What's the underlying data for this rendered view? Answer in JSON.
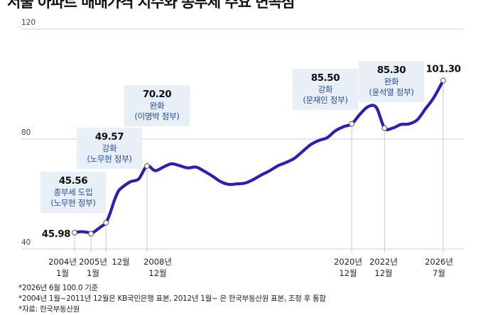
{
  "title": "서울 아파트 매매가격 지수와 종부세 주요 변곡점",
  "chart_data": {
    "type": "line",
    "ylim": [
      40,
      120
    ],
    "yticks": [
      40,
      80,
      120
    ],
    "xlim": [
      "2004-01",
      "2026-07"
    ],
    "series": [
      {
        "x": [
          "2004-01",
          "2004-06",
          "2004-12",
          "2005-01",
          "2005-04",
          "2005-08",
          "2005-12",
          "2006-03",
          "2006-06",
          "2006-09",
          "2006-12",
          "2007-06",
          "2007-12",
          "2008-06",
          "2008-12",
          "2009-06",
          "2009-12",
          "2010-06",
          "2010-12",
          "2011-06",
          "2011-12",
          "2012-06",
          "2012-12",
          "2013-06",
          "2013-12",
          "2014-06",
          "2014-12",
          "2015-06",
          "2015-12",
          "2016-06",
          "2016-12",
          "2017-06",
          "2017-12",
          "2018-06",
          "2018-12",
          "2019-06",
          "2019-12",
          "2020-06",
          "2020-12",
          "2021-06",
          "2021-12",
          "2022-06",
          "2022-12",
          "2023-06",
          "2023-12",
          "2024-06",
          "2024-12",
          "2025-06",
          "2025-12",
          "2026-07"
        ],
        "values": [
          45.98,
          46.3,
          45.9,
          45.56,
          46.5,
          48.0,
          49.57,
          53.0,
          57.5,
          61.0,
          62.5,
          64.5,
          65.5,
          70.2,
          68.5,
          69.8,
          71.0,
          70.3,
          69.5,
          69.8,
          68.3,
          66.5,
          64.5,
          63.5,
          63.7,
          64.0,
          65.3,
          67.0,
          68.5,
          70.3,
          71.5,
          73.0,
          75.5,
          78.0,
          79.5,
          80.5,
          83.0,
          84.5,
          85.5,
          89.0,
          91.8,
          91.5,
          84.0,
          84.0,
          85.3,
          85.5,
          87.0,
          91.0,
          95.0,
          101.3
        ]
      }
    ],
    "point_labels": [
      "45.98",
      "45.56",
      "49.57",
      "70.20",
      "85.50",
      "85.30",
      "101.30"
    ],
    "annotations": [
      {
        "value": "45.56",
        "lines": [
          "종부세 도입",
          "(노무현 정부)"
        ]
      },
      {
        "value": "49.57",
        "lines": [
          "강화",
          "(노무현 정부)"
        ]
      },
      {
        "value": "70.20",
        "lines": [
          "완화",
          "(이명박 정부)"
        ]
      },
      {
        "value": "85.50",
        "lines": [
          "강화",
          "(문재인 정부)"
        ]
      },
      {
        "value": "85.30",
        "lines": [
          "완화",
          "(윤석열 정부)"
        ]
      }
    ],
    "x_tick_labels": [
      {
        "year": "2004년",
        "month": "1월"
      },
      {
        "year": "2005년",
        "month": "1월"
      },
      {
        "year": "12월",
        "month": ""
      },
      {
        "year": "2008년",
        "month": "12월"
      },
      {
        "year": "2020년",
        "month": "12월"
      },
      {
        "year": "2022년",
        "month": "12월"
      },
      {
        "year": "2026년",
        "month": "7월"
      }
    ],
    "line_color": "#2d1fb0",
    "highlight_color": "#e9eff6",
    "grid": true
  },
  "footnotes": [
    "*2026년 6월 100.0 기준",
    "*2004년 1월~2011년 12월은 KB국민은행 표본, 2012년 1월~ 은 한국부동산원 표본, 조정 후 통합",
    "*자료: 한국부동산원"
  ]
}
